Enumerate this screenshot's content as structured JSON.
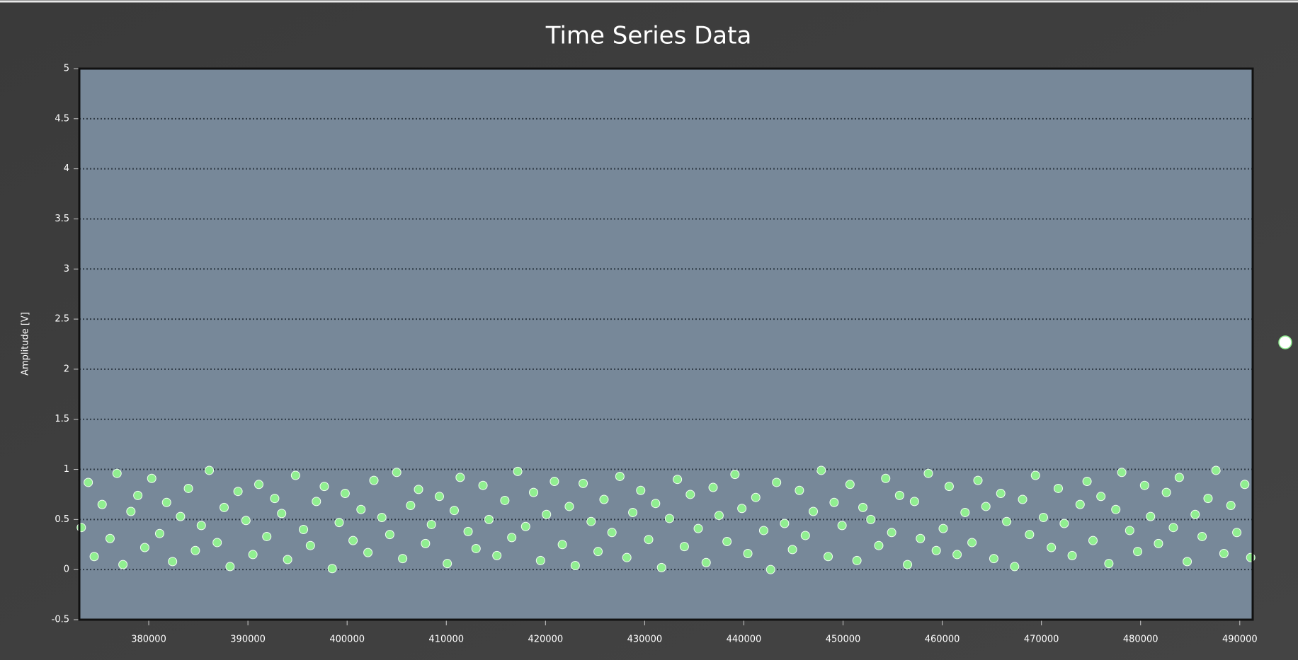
{
  "chart_data": {
    "type": "scatter",
    "title": "Time Series Data",
    "y_label": "Amplitude [V]",
    "color": "#90ee90",
    "edge_color": "#f0fff0",
    "plot_background": "#778899",
    "grid": true,
    "xlim": [
      373000,
      491300
    ],
    "ylim": [
      -0.5,
      5
    ],
    "xticks": [
      380000,
      390000,
      400000,
      410000,
      420000,
      430000,
      440000,
      450000,
      460000,
      470000,
      480000,
      490000
    ],
    "yticks": [
      -0.5,
      0,
      0.5,
      1,
      1.5,
      2,
      2.5,
      3,
      3.5,
      4,
      4.5,
      5
    ],
    "x": [
      373200,
      373900,
      374500,
      375300,
      376100,
      376800,
      377400,
      378200,
      378900,
      379600,
      380300,
      381100,
      381800,
      382400,
      383200,
      384000,
      384700,
      385300,
      386100,
      386900,
      387600,
      388200,
      389000,
      389800,
      390500,
      391100,
      391900,
      392700,
      393400,
      394000,
      394800,
      395600,
      396300,
      396900,
      397700,
      398500,
      399200,
      399800,
      400600,
      401400,
      402100,
      402700,
      403500,
      404300,
      405000,
      405600,
      406400,
      407200,
      407900,
      408500,
      409300,
      410100,
      410800,
      411400,
      412200,
      413000,
      413700,
      414300,
      415100,
      415900,
      416600,
      417200,
      418000,
      418800,
      419500,
      420100,
      420900,
      421700,
      422400,
      423000,
      423800,
      424600,
      425300,
      425900,
      426700,
      427500,
      428200,
      428800,
      429600,
      430400,
      431100,
      431700,
      432500,
      433300,
      434000,
      434600,
      435400,
      436200,
      436900,
      437500,
      438300,
      439100,
      439800,
      440400,
      441200,
      442000,
      442700,
      443300,
      444100,
      444900,
      445600,
      446200,
      447000,
      447800,
      448500,
      449100,
      449900,
      450700,
      451400,
      452000,
      452800,
      453600,
      454300,
      454900,
      455700,
      456500,
      457200,
      457800,
      458600,
      459400,
      460100,
      460700,
      461500,
      462300,
      463000,
      463600,
      464400,
      465200,
      465900,
      466500,
      467300,
      468100,
      468800,
      469400,
      470200,
      471000,
      471700,
      472300,
      473100,
      473900,
      474600,
      475200,
      476000,
      476800,
      477500,
      478100,
      478900,
      479700,
      480400,
      481000,
      481800,
      482600,
      483300,
      483900,
      484700,
      485500,
      486200,
      486800,
      487600,
      488400,
      489100,
      489700,
      490500,
      491100
    ],
    "values": [
      0.42,
      0.87,
      0.13,
      0.65,
      0.31,
      0.96,
      0.05,
      0.58,
      0.74,
      0.22,
      0.91,
      0.36,
      0.67,
      0.08,
      0.53,
      0.81,
      0.19,
      0.44,
      0.99,
      0.27,
      0.62,
      0.03,
      0.78,
      0.49,
      0.15,
      0.85,
      0.33,
      0.71,
      0.56,
      0.1,
      0.94,
      0.4,
      0.24,
      0.68,
      0.83,
      0.01,
      0.47,
      0.76,
      0.29,
      0.6,
      0.17,
      0.89,
      0.52,
      0.35,
      0.97,
      0.11,
      0.64,
      0.8,
      0.26,
      0.45,
      0.73,
      0.06,
      0.59,
      0.92,
      0.38,
      0.21,
      0.84,
      0.5,
      0.14,
      0.69,
      0.32,
      0.98,
      0.43,
      0.77,
      0.09,
      0.55,
      0.88,
      0.25,
      0.63,
      0.04,
      0.86,
      0.48,
      0.18,
      0.7,
      0.37,
      0.93,
      0.12,
      0.57,
      0.79,
      0.3,
      0.66,
      0.02,
      0.51,
      0.9,
      0.23,
      0.75,
      0.41,
      0.07,
      0.82,
      0.54,
      0.28,
      0.95,
      0.61,
      0.16,
      0.72,
      0.39,
      0.0,
      0.87,
      0.46,
      0.2,
      0.79,
      0.34,
      0.58,
      0.99,
      0.13,
      0.67,
      0.44,
      0.85,
      0.09,
      0.62,
      0.5,
      0.24,
      0.91,
      0.37,
      0.74,
      0.05,
      0.68,
      0.31,
      0.96,
      0.19,
      0.41,
      0.83,
      0.15,
      0.57,
      0.27,
      0.89,
      0.63,
      0.11,
      0.76,
      0.48,
      0.03,
      0.7,
      0.35,
      0.94,
      0.52,
      0.22,
      0.81,
      0.46,
      0.14,
      0.65,
      0.88,
      0.29,
      0.73,
      0.06,
      0.6,
      0.97,
      0.39,
      0.18,
      0.84,
      0.53,
      0.26,
      0.77,
      0.42,
      0.92,
      0.08,
      0.55,
      0.33,
      0.71,
      0.99,
      0.16,
      0.64,
      0.37,
      0.85,
      0.12
    ]
  }
}
